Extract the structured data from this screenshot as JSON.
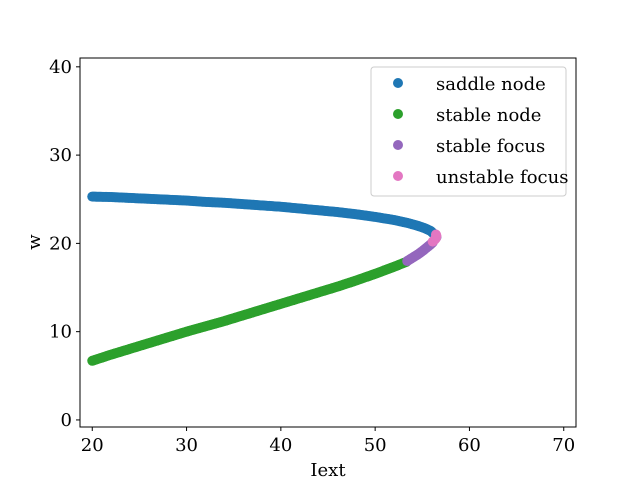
{
  "chart_data": {
    "type": "scatter",
    "title": "",
    "xlabel": "Iext",
    "ylabel": "w",
    "xlim": [
      18.7,
      71.3
    ],
    "ylim": [
      -0.8,
      41.0
    ],
    "xticks": [
      20,
      30,
      40,
      50,
      60,
      70
    ],
    "yticks": [
      0,
      10,
      20,
      30,
      40
    ],
    "grid": false,
    "legend_position": "top-right",
    "series": [
      {
        "name": "saddle node",
        "color": "#1f77b4",
        "points": [
          [
            20.0,
            25.3
          ],
          [
            22.0,
            25.25
          ],
          [
            24.0,
            25.15
          ],
          [
            26.0,
            25.05
          ],
          [
            28.0,
            24.95
          ],
          [
            30.0,
            24.85
          ],
          [
            32.0,
            24.7
          ],
          [
            34.0,
            24.6
          ],
          [
            36.0,
            24.45
          ],
          [
            38.0,
            24.3
          ],
          [
            40.0,
            24.15
          ],
          [
            42.0,
            23.95
          ],
          [
            44.0,
            23.75
          ],
          [
            46.0,
            23.55
          ],
          [
            48.0,
            23.3
          ],
          [
            50.0,
            23.0
          ],
          [
            52.0,
            22.65
          ],
          [
            53.5,
            22.3
          ],
          [
            54.5,
            22.0
          ],
          [
            55.3,
            21.7
          ],
          [
            55.9,
            21.4
          ],
          [
            56.3,
            21.0
          ],
          [
            56.5,
            20.7
          ]
        ]
      },
      {
        "name": "stable node",
        "color": "#2ca02c",
        "points": [
          [
            20.0,
            6.7
          ],
          [
            22.0,
            7.4
          ],
          [
            24.0,
            8.05
          ],
          [
            26.0,
            8.7
          ],
          [
            28.0,
            9.35
          ],
          [
            30.0,
            10.0
          ],
          [
            32.0,
            10.6
          ],
          [
            34.0,
            11.2
          ],
          [
            36.0,
            11.85
          ],
          [
            38.0,
            12.5
          ],
          [
            40.0,
            13.15
          ],
          [
            42.0,
            13.8
          ],
          [
            44.0,
            14.45
          ],
          [
            46.0,
            15.1
          ],
          [
            48.0,
            15.8
          ],
          [
            50.0,
            16.55
          ],
          [
            52.0,
            17.35
          ],
          [
            53.3,
            17.9
          ]
        ]
      },
      {
        "name": "stable focus",
        "color": "#9467bd",
        "points": [
          [
            53.4,
            18.0
          ],
          [
            54.0,
            18.4
          ],
          [
            54.6,
            18.8
          ],
          [
            55.1,
            19.2
          ],
          [
            55.5,
            19.55
          ],
          [
            55.9,
            19.9
          ],
          [
            56.1,
            20.1
          ]
        ]
      },
      {
        "name": "unstable focus",
        "color": "#e377c2",
        "points": [
          [
            56.1,
            20.2
          ],
          [
            56.3,
            20.4
          ],
          [
            56.45,
            20.6
          ],
          [
            56.5,
            20.8
          ],
          [
            56.45,
            21.0
          ]
        ]
      }
    ]
  }
}
